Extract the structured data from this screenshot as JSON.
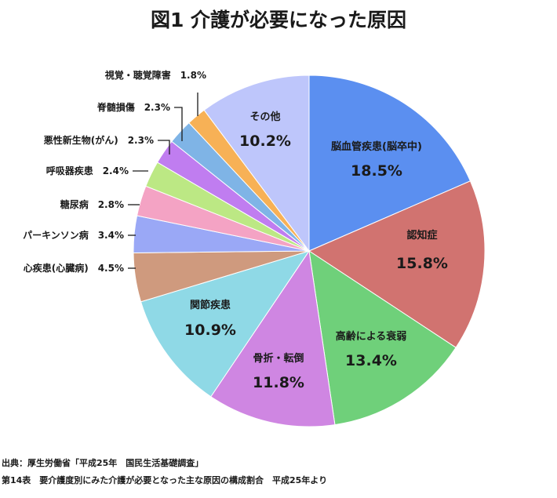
{
  "title": "図1 介護が必要になった原因",
  "source": {
    "line1": "出典：厚生労働省「平成25年　国民生活基礎調査」",
    "line2": "第14表　要介護度別にみた介護が必要となった主な原因の構成割合　平成25年より"
  },
  "chart_data": {
    "type": "pie",
    "title": "図1 介護が必要になった原因",
    "unit": "%",
    "slices": [
      {
        "label": "脳血管疾患(脳卒中)",
        "value": 18.5,
        "display": "18.5%",
        "color": "#5b8ff0"
      },
      {
        "label": "認知症",
        "value": 15.8,
        "display": "15.8%",
        "color": "#d17370"
      },
      {
        "label": "高齢による衰弱",
        "value": 13.4,
        "display": "13.4%",
        "color": "#6fd07a"
      },
      {
        "label": "骨折・転倒",
        "value": 11.8,
        "display": "11.8%",
        "color": "#cf86e2"
      },
      {
        "label": "関節疾患",
        "value": 10.9,
        "display": "10.9%",
        "color": "#8fd9e6"
      },
      {
        "label": "心疾患(心臓病)",
        "value": 4.5,
        "display": "4.5%",
        "color": "#cf9a7e"
      },
      {
        "label": "パーキンソン病",
        "value": 3.4,
        "display": "3.4%",
        "color": "#9aa8f6"
      },
      {
        "label": "糖尿病",
        "value": 2.8,
        "display": "2.8%",
        "color": "#f4a3c4"
      },
      {
        "label": "呼吸器疾患",
        "value": 2.4,
        "display": "2.4%",
        "color": "#bce884"
      },
      {
        "label": "悪性新生物(がん)",
        "value": 2.3,
        "display": "2.3%",
        "color": "#c07df0"
      },
      {
        "label": "脊髄損傷",
        "value": 2.3,
        "display": "2.3%",
        "color": "#7fb4e6"
      },
      {
        "label": "視覚・聴覚障害",
        "value": 1.8,
        "display": "1.8%",
        "color": "#f7b156"
      },
      {
        "label": "その他",
        "value": 10.2,
        "display": "10.2%",
        "color": "#bec6fb"
      }
    ]
  }
}
